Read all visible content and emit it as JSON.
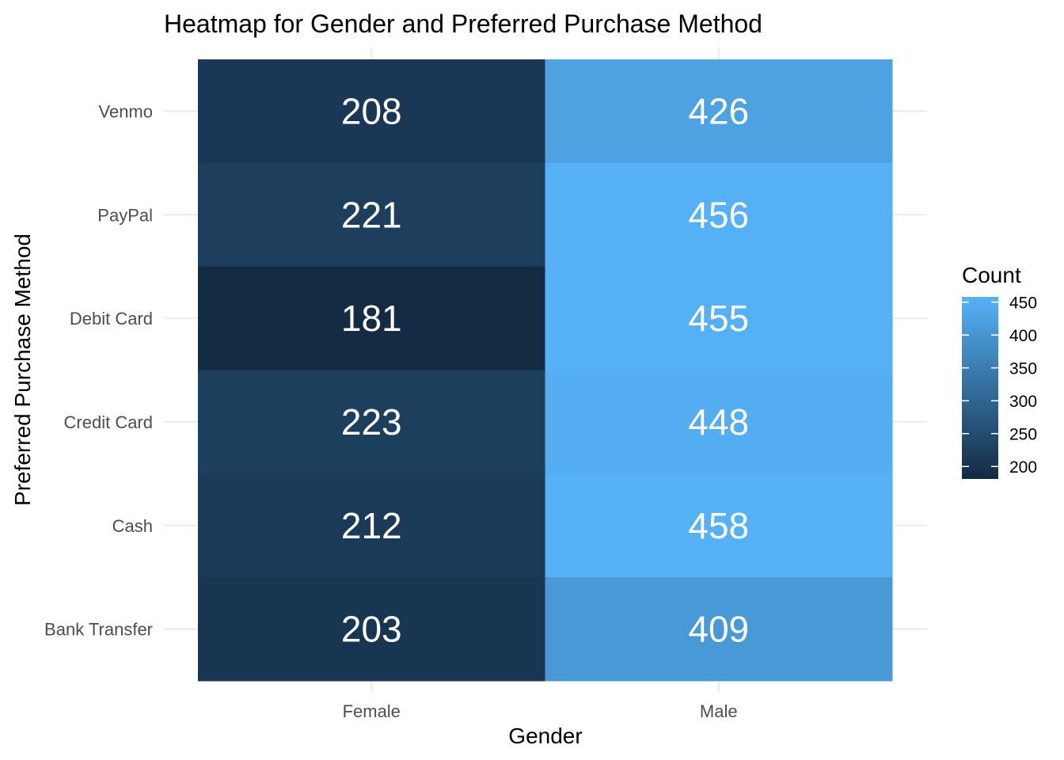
{
  "chart_data": {
    "type": "heatmap",
    "title": "Heatmap for Gender and Preferred Purchase Method",
    "xlabel": "Gender",
    "ylabel": "Preferred Purchase Method",
    "x_categories": [
      "Female",
      "Male"
    ],
    "y_categories": [
      "Bank Transfer",
      "Cash",
      "Credit Card",
      "Debit Card",
      "PayPal",
      "Venmo"
    ],
    "values": [
      {
        "x": "Female",
        "y": "Venmo",
        "value": 208
      },
      {
        "x": "Male",
        "y": "Venmo",
        "value": 426
      },
      {
        "x": "Female",
        "y": "PayPal",
        "value": 221
      },
      {
        "x": "Male",
        "y": "PayPal",
        "value": 456
      },
      {
        "x": "Female",
        "y": "Debit Card",
        "value": 181
      },
      {
        "x": "Male",
        "y": "Debit Card",
        "value": 455
      },
      {
        "x": "Female",
        "y": "Credit Card",
        "value": 223
      },
      {
        "x": "Male",
        "y": "Credit Card",
        "value": 448
      },
      {
        "x": "Female",
        "y": "Cash",
        "value": 212
      },
      {
        "x": "Male",
        "y": "Cash",
        "value": 458
      },
      {
        "x": "Female",
        "y": "Bank Transfer",
        "value": 203
      },
      {
        "x": "Male",
        "y": "Bank Transfer",
        "value": 409
      }
    ],
    "legend": {
      "title": "Count",
      "ticks": [
        200,
        250,
        300,
        350,
        400,
        450
      ],
      "range": [
        181,
        458
      ],
      "low_color": "#132B43",
      "high_color": "#56B1F7",
      "placement": "right"
    },
    "grid": true
  }
}
